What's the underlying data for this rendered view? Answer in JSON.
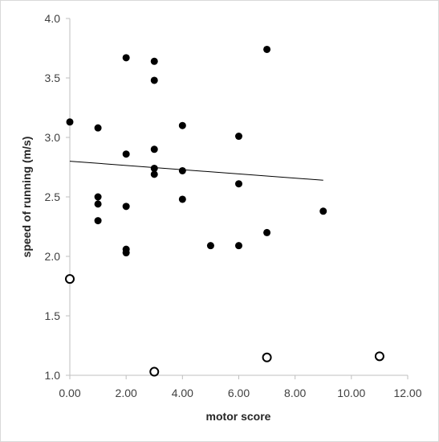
{
  "chart_data": {
    "type": "scatter",
    "title": "",
    "xlabel": "motor score",
    "ylabel": "speed of running (m/s)",
    "xlim": [
      0,
      12
    ],
    "ylim": [
      1.0,
      4.0
    ],
    "x_ticks": [
      "0.00",
      "2.00",
      "4.00",
      "6.00",
      "8.00",
      "10.00",
      "12.00"
    ],
    "y_ticks": [
      "1.0",
      "1.5",
      "2.0",
      "2.5",
      "3.0",
      "3.5",
      "4.0"
    ],
    "x_tick_values": [
      0,
      2,
      4,
      6,
      8,
      10,
      12
    ],
    "y_tick_values": [
      1.0,
      1.5,
      2.0,
      2.5,
      3.0,
      3.5,
      4.0
    ],
    "grid": false,
    "legend": "none",
    "series": [
      {
        "marker": "filled-circle",
        "color": "#000000",
        "points": [
          [
            0,
            3.13
          ],
          [
            1,
            3.08
          ],
          [
            1,
            2.5
          ],
          [
            1,
            2.44
          ],
          [
            1,
            2.3
          ],
          [
            2,
            3.67
          ],
          [
            2,
            2.86
          ],
          [
            2,
            2.42
          ],
          [
            2,
            2.06
          ],
          [
            2,
            2.03
          ],
          [
            3,
            3.64
          ],
          [
            3,
            3.48
          ],
          [
            3,
            2.9
          ],
          [
            3,
            2.74
          ],
          [
            3,
            2.69
          ],
          [
            4,
            3.1
          ],
          [
            4,
            2.72
          ],
          [
            4,
            2.48
          ],
          [
            5,
            2.09
          ],
          [
            6,
            3.01
          ],
          [
            6,
            2.61
          ],
          [
            6,
            2.09
          ],
          [
            7,
            3.74
          ],
          [
            7,
            2.2
          ],
          [
            9,
            2.38
          ]
        ]
      },
      {
        "marker": "open-circle",
        "color": "#000000",
        "points": [
          [
            0,
            1.81
          ],
          [
            3,
            1.03
          ],
          [
            7,
            1.15
          ],
          [
            11,
            1.16
          ]
        ]
      }
    ],
    "trendline": {
      "x": [
        0,
        9
      ],
      "y": [
        2.8,
        2.64
      ],
      "color": "#000000"
    }
  }
}
